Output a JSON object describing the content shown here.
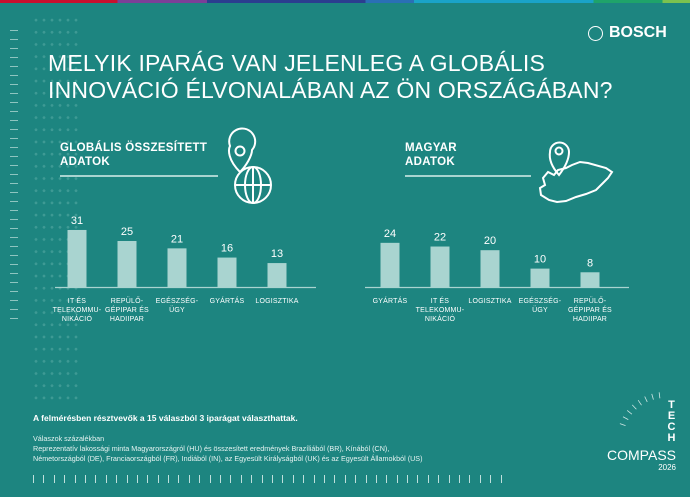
{
  "header": {
    "title_line1": "MELYIK IPARÁG VAN JELENLEG A GLOBÁLIS",
    "title_line2": "INNOVÁCIÓ ÉLVONALÁBAN AZ ÖN ORSZÁGÁBAN?",
    "logo": "BOSCH"
  },
  "colors": {
    "background": "#1d8580",
    "bar": "#a9d4d0",
    "text": "#ffffff"
  },
  "chart_data": [
    {
      "type": "bar",
      "title": "GLOBÁLIS ÖSSZESÍTETT ADATOK",
      "title_lines": [
        "GLOBÁLIS ÖSSZESÍTETT",
        "ADATOK"
      ],
      "icon": "location-globe-icon",
      "categories": [
        [
          "IT ÉS",
          "TELEKOMMU-",
          "NIKÁCIÓ"
        ],
        [
          "REPÜLŐ-",
          "GÉPIPAR ÉS",
          "HADIIPAR"
        ],
        [
          "EGÉSZSÉG-",
          "ÜGY"
        ],
        [
          "GYÁRTÁS"
        ],
        [
          "LOGISZTIKA"
        ]
      ],
      "values": [
        31,
        25,
        21,
        16,
        13
      ],
      "unit": "%",
      "grid": false
    },
    {
      "type": "bar",
      "title": "MAGYAR ADATOK",
      "title_lines": [
        "MAGYAR",
        "ADATOK"
      ],
      "icon": "location-hungary-map-icon",
      "categories": [
        [
          "GYÁRTÁS"
        ],
        [
          "IT ÉS",
          "TELEKOMMU-",
          "NIKÁCIÓ"
        ],
        [
          "LOGISZTIKA"
        ],
        [
          "EGÉSZSÉG-",
          "ÜGY"
        ],
        [
          "REPÜLŐ-",
          "GÉPIPAR ÉS",
          "HADIIPAR"
        ]
      ],
      "values": [
        24,
        22,
        20,
        10,
        8
      ],
      "unit": "%",
      "grid": false
    }
  ],
  "footer": {
    "note": "A felmérésben résztvevők a 15 válaszból 3 iparágat választhattak.",
    "line1": "Válaszok százalékban",
    "line2": "Reprezentatív lakossági minta Magyarországról (HU) és összesített eredmények Brazíliából (BR), Kínából (CN),",
    "line3": "Németországból (DE), Franciaországból (FR), Indiából (IN), az Egyesült Királyságból (UK) és az Egyesült Államokból (US)"
  },
  "brand": {
    "tech": "TECH",
    "compass": "COMPASS",
    "year": "2026"
  }
}
